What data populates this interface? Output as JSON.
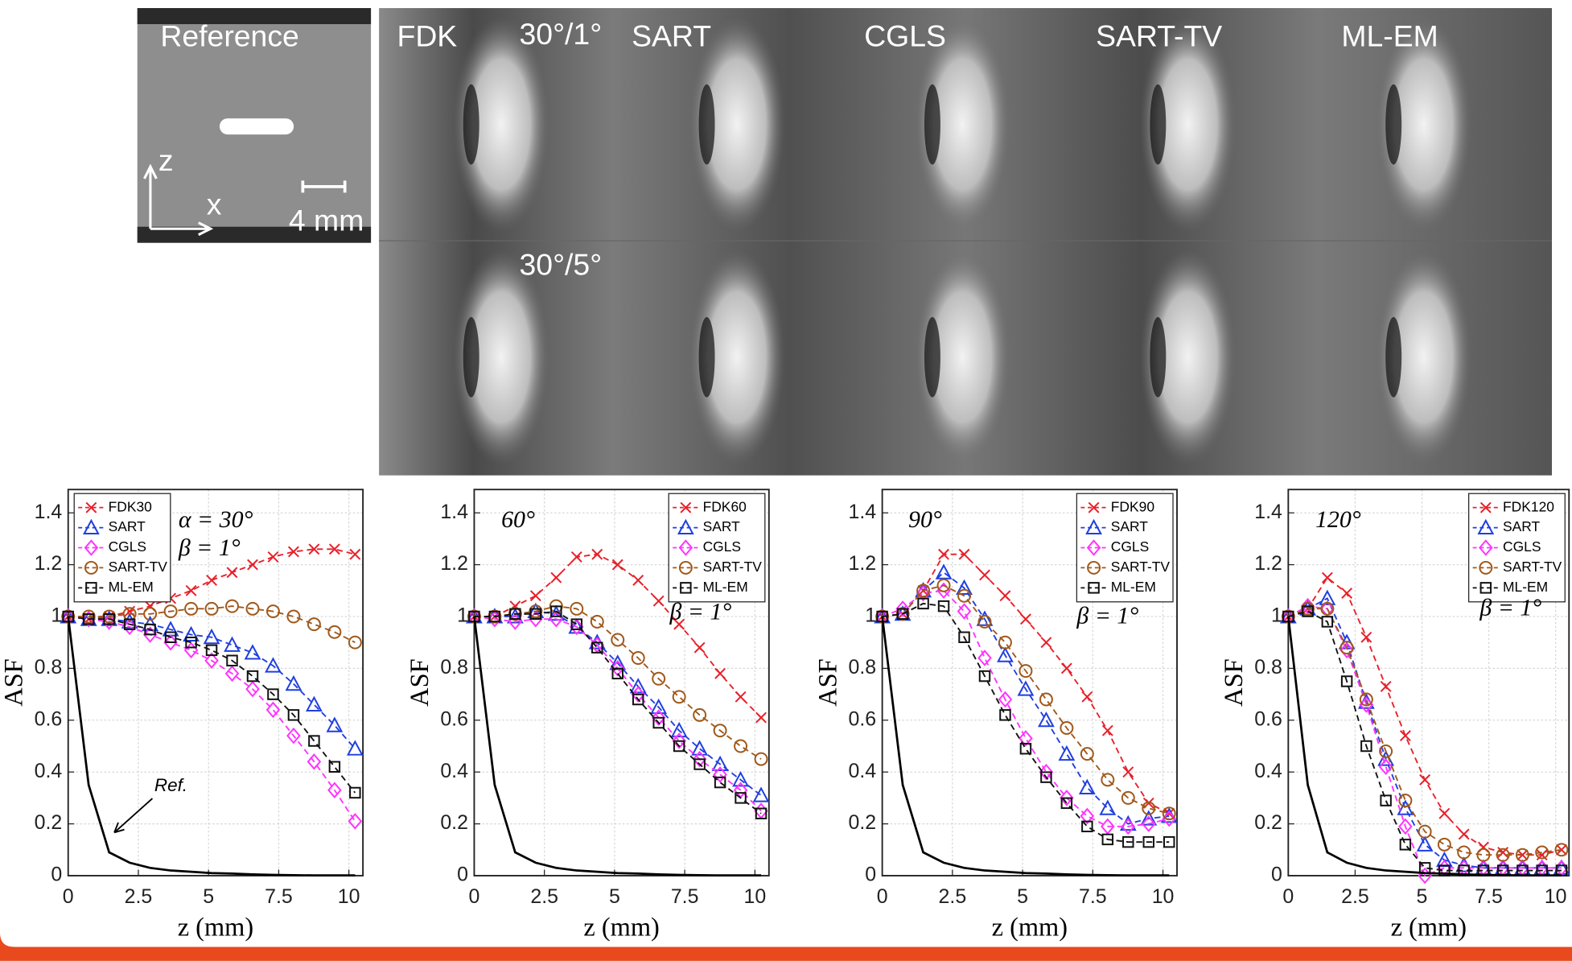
{
  "panel_labels": {
    "reference": "Reference",
    "z_axis": "z",
    "x_axis": "x",
    "scale_bar": "4 mm",
    "method_labels": [
      "FDK",
      "SART",
      "CGLS",
      "SART-TV",
      "ML-EM"
    ],
    "row_labels": [
      "30°/1°",
      "30°/5°"
    ]
  },
  "chart_data": [
    {
      "type": "line",
      "xlabel": "z (mm)",
      "ylabel": "ASF",
      "legend": "upper left",
      "annotations": [
        "α = 30°",
        "β = 1°",
        "Ref."
      ],
      "xlim": [
        0,
        10.5
      ],
      "ylim": [
        0,
        1.49
      ],
      "xticks": [
        0,
        2.5,
        5,
        7.5,
        10
      ],
      "yticks": [
        0,
        0.2,
        0.4,
        0.6,
        0.8,
        1,
        1.2,
        1.4
      ],
      "grid": true,
      "x": [
        0,
        0.73,
        1.46,
        2.19,
        2.92,
        3.65,
        4.38,
        5.11,
        5.84,
        6.57,
        7.3,
        8.03,
        8.76,
        9.49,
        10.22
      ],
      "series": [
        {
          "name": "FDK30",
          "color": "#e8202a",
          "marker": "x",
          "linestyle": "dashed",
          "values": [
            1,
            0.99,
            1.0,
            1.02,
            1.04,
            1.07,
            1.1,
            1.14,
            1.17,
            1.2,
            1.23,
            1.25,
            1.26,
            1.26,
            1.24
          ]
        },
        {
          "name": "SART",
          "color": "#1f3fe0",
          "marker": "triangle",
          "linestyle": "dashed",
          "values": [
            1,
            0.99,
            0.99,
            0.98,
            0.97,
            0.95,
            0.93,
            0.92,
            0.89,
            0.86,
            0.81,
            0.74,
            0.66,
            0.58,
            0.49
          ]
        },
        {
          "name": "CGLS",
          "color": "#ff33ff",
          "marker": "diamond",
          "linestyle": "dashed",
          "values": [
            1,
            0.99,
            0.98,
            0.96,
            0.93,
            0.9,
            0.87,
            0.83,
            0.78,
            0.72,
            0.64,
            0.54,
            0.44,
            0.33,
            0.21
          ]
        },
        {
          "name": "SART-TV",
          "color": "#a0581a",
          "marker": "circle",
          "linestyle": "dashed",
          "values": [
            1,
            1,
            1.0,
            1.01,
            1.01,
            1.02,
            1.03,
            1.03,
            1.04,
            1.03,
            1.02,
            1.0,
            0.97,
            0.94,
            0.9
          ]
        },
        {
          "name": "ML-EM",
          "color": "#111111",
          "marker": "square",
          "linestyle": "dashed",
          "values": [
            1,
            0.99,
            0.99,
            0.97,
            0.95,
            0.92,
            0.9,
            0.87,
            0.83,
            0.77,
            0.7,
            0.62,
            0.52,
            0.42,
            0.32
          ]
        },
        {
          "color": "#000000",
          "marker": "none",
          "linestyle": "solid",
          "values": [
            1,
            0.35,
            0.09,
            0.05,
            0.03,
            0.02,
            0.015,
            0.01,
            0.008,
            0.005,
            0.003,
            0.002,
            0.001,
            0.001,
            0.001
          ]
        }
      ]
    },
    {
      "type": "line",
      "xlabel": "z (mm)",
      "ylabel": "ASF",
      "legend": "upper right",
      "annotations": [
        "60°",
        "β = 1°"
      ],
      "xlim": [
        0,
        10.5
      ],
      "ylim": [
        0,
        1.49
      ],
      "xticks": [
        0,
        2.5,
        5,
        7.5,
        10
      ],
      "yticks": [
        0,
        0.2,
        0.4,
        0.6,
        0.8,
        1,
        1.2,
        1.4
      ],
      "grid": true,
      "x": [
        0,
        0.73,
        1.46,
        2.19,
        2.92,
        3.65,
        4.38,
        5.11,
        5.84,
        6.57,
        7.3,
        8.03,
        8.76,
        9.49,
        10.22
      ],
      "series": [
        {
          "name": "FDK60",
          "color": "#e8202a",
          "marker": "x",
          "linestyle": "dashed",
          "values": [
            1,
            1,
            1.04,
            1.08,
            1.15,
            1.23,
            1.24,
            1.2,
            1.14,
            1.06,
            0.97,
            0.88,
            0.78,
            0.69,
            0.61
          ]
        },
        {
          "name": "SART",
          "color": "#1f3fe0",
          "marker": "triangle",
          "linestyle": "dashed",
          "values": [
            1,
            1,
            1,
            1.02,
            1.01,
            0.96,
            0.9,
            0.82,
            0.73,
            0.65,
            0.56,
            0.49,
            0.43,
            0.37,
            0.31
          ]
        },
        {
          "name": "CGLS",
          "color": "#ff33ff",
          "marker": "diamond",
          "linestyle": "dashed",
          "values": [
            1,
            0.99,
            0.98,
            0.99,
            0.99,
            0.96,
            0.89,
            0.8,
            0.7,
            0.61,
            0.52,
            0.45,
            0.39,
            0.33,
            0.25
          ]
        },
        {
          "name": "SART-TV",
          "color": "#a0581a",
          "marker": "circle",
          "linestyle": "dashed",
          "values": [
            1,
            1,
            1.01,
            1.02,
            1.04,
            1.03,
            0.98,
            0.91,
            0.84,
            0.76,
            0.69,
            0.62,
            0.56,
            0.5,
            0.45
          ]
        },
        {
          "name": "ML-EM",
          "color": "#111111",
          "marker": "square",
          "linestyle": "dashed",
          "values": [
            1,
            1,
            1.01,
            1.01,
            1.02,
            0.97,
            0.88,
            0.78,
            0.68,
            0.59,
            0.5,
            0.43,
            0.36,
            0.3,
            0.24
          ]
        },
        {
          "color": "#000000",
          "marker": "none",
          "linestyle": "solid",
          "values": [
            1,
            0.35,
            0.09,
            0.05,
            0.03,
            0.02,
            0.015,
            0.01,
            0.008,
            0.005,
            0.003,
            0.002,
            0.001,
            0.001,
            0.001
          ]
        }
      ]
    },
    {
      "type": "line",
      "xlabel": "z (mm)",
      "ylabel": "ASF",
      "legend": "upper right",
      "annotations": [
        "90°",
        "β = 1°"
      ],
      "xlim": [
        0,
        10.5
      ],
      "ylim": [
        0,
        1.49
      ],
      "xticks": [
        0,
        2.5,
        5,
        7.5,
        10
      ],
      "yticks": [
        0,
        0.2,
        0.4,
        0.6,
        0.8,
        1,
        1.2,
        1.4
      ],
      "grid": true,
      "x": [
        0,
        0.73,
        1.46,
        2.19,
        2.92,
        3.65,
        4.38,
        5.11,
        5.84,
        6.57,
        7.3,
        8.03,
        8.76,
        9.49,
        10.22
      ],
      "series": [
        {
          "name": "FDK90",
          "color": "#e8202a",
          "marker": "x",
          "linestyle": "dashed",
          "values": [
            1,
            1.01,
            1.1,
            1.24,
            1.24,
            1.16,
            1.08,
            0.99,
            0.9,
            0.8,
            0.69,
            0.56,
            0.4,
            0.28,
            0.24
          ]
        },
        {
          "name": "SART",
          "color": "#1f3fe0",
          "marker": "triangle",
          "linestyle": "dashed",
          "values": [
            1,
            1.01,
            1.1,
            1.17,
            1.11,
            0.99,
            0.85,
            0.72,
            0.6,
            0.47,
            0.34,
            0.26,
            0.2,
            0.22,
            0.23
          ]
        },
        {
          "name": "CGLS",
          "color": "#ff33ff",
          "marker": "diamond",
          "linestyle": "dashed",
          "values": [
            1,
            1.03,
            1.09,
            1.1,
            1.02,
            0.84,
            0.68,
            0.53,
            0.4,
            0.3,
            0.23,
            0.19,
            0.19,
            0.2,
            0.22
          ]
        },
        {
          "name": "SART-TV",
          "color": "#a0581a",
          "marker": "circle",
          "linestyle": "dashed",
          "values": [
            1,
            1.01,
            1.1,
            1.12,
            1.08,
            0.98,
            0.9,
            0.79,
            0.68,
            0.57,
            0.47,
            0.37,
            0.3,
            0.26,
            0.24
          ]
        },
        {
          "name": "ML-EM",
          "color": "#111111",
          "marker": "square",
          "linestyle": "dashed",
          "values": [
            1,
            1.01,
            1.05,
            1.04,
            0.92,
            0.77,
            0.62,
            0.49,
            0.38,
            0.28,
            0.19,
            0.14,
            0.13,
            0.13,
            0.13
          ]
        },
        {
          "color": "#000000",
          "marker": "none",
          "linestyle": "solid",
          "values": [
            1,
            0.35,
            0.09,
            0.05,
            0.03,
            0.02,
            0.015,
            0.01,
            0.008,
            0.005,
            0.003,
            0.002,
            0.001,
            0.001,
            0.001
          ]
        }
      ]
    },
    {
      "type": "line",
      "xlabel": "z (mm)",
      "ylabel": "ASF",
      "legend": "upper right",
      "annotations": [
        "120°",
        "β = 1°"
      ],
      "xlim": [
        0,
        10.5
      ],
      "ylim": [
        0,
        1.49
      ],
      "xticks": [
        0,
        2.5,
        5,
        7.5,
        10
      ],
      "yticks": [
        0,
        0.2,
        0.4,
        0.6,
        0.8,
        1,
        1.2,
        1.4
      ],
      "grid": true,
      "x": [
        0,
        0.73,
        1.46,
        2.19,
        2.92,
        3.65,
        4.38,
        5.11,
        5.84,
        6.57,
        7.3,
        8.03,
        8.76,
        9.49,
        10.22
      ],
      "series": [
        {
          "name": "FDK120",
          "color": "#e8202a",
          "marker": "x",
          "linestyle": "dashed",
          "values": [
            1,
            1.03,
            1.15,
            1.09,
            0.92,
            0.73,
            0.54,
            0.37,
            0.24,
            0.16,
            0.11,
            0.09,
            0.08,
            0.08,
            0.1
          ]
        },
        {
          "name": "SART",
          "color": "#1f3fe0",
          "marker": "triangle",
          "linestyle": "dashed",
          "values": [
            1,
            1.03,
            1.07,
            0.9,
            0.67,
            0.45,
            0.26,
            0.12,
            0.06,
            0.04,
            0.03,
            0.03,
            0.03,
            0.03,
            0.03
          ]
        },
        {
          "name": "CGLS",
          "color": "#ff33ff",
          "marker": "diamond",
          "linestyle": "dashed",
          "values": [
            1,
            1.04,
            1.03,
            0.87,
            0.66,
            0.42,
            0.19,
            0.0,
            0.03,
            0.03,
            0.03,
            0.03,
            0.03,
            0.03,
            0.03
          ]
        },
        {
          "name": "SART-TV",
          "color": "#a0581a",
          "marker": "circle",
          "linestyle": "dashed",
          "values": [
            1,
            1.03,
            1.03,
            0.88,
            0.68,
            0.48,
            0.29,
            0.17,
            0.12,
            0.09,
            0.08,
            0.08,
            0.08,
            0.09,
            0.1
          ]
        },
        {
          "name": "ML-EM",
          "color": "#111111",
          "marker": "square",
          "linestyle": "dashed",
          "values": [
            1,
            1.02,
            0.98,
            0.75,
            0.5,
            0.29,
            0.12,
            0.03,
            0.02,
            0.02,
            0.02,
            0.02,
            0.02,
            0.02,
            0.02
          ]
        },
        {
          "color": "#000000",
          "marker": "none",
          "linestyle": "solid",
          "values": [
            1,
            0.35,
            0.09,
            0.05,
            0.03,
            0.02,
            0.015,
            0.01,
            0.008,
            0.005,
            0.003,
            0.002,
            0.001,
            0.001,
            0.001
          ]
        }
      ]
    }
  ]
}
